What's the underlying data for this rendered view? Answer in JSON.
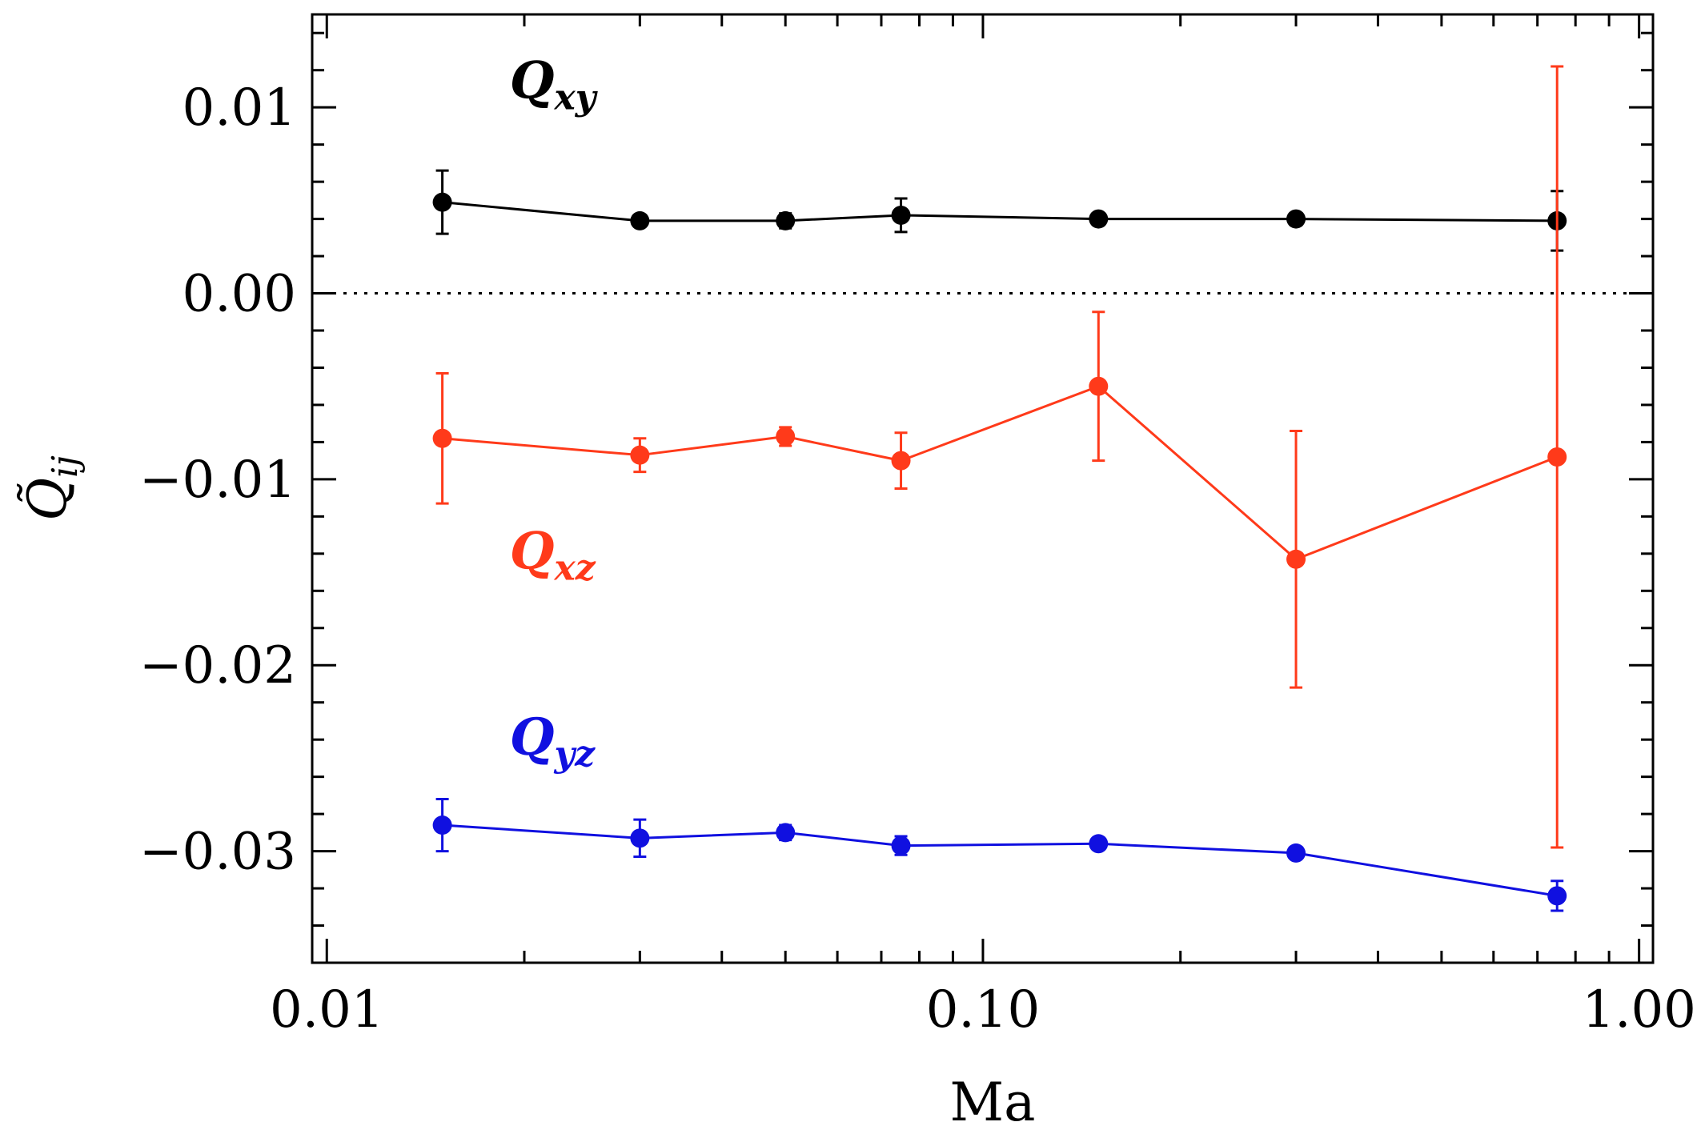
{
  "chart_data": {
    "type": "scatter",
    "xscale": "log",
    "xlim": [
      0.0095,
      1.05
    ],
    "ylim": [
      -0.036,
      0.015
    ],
    "xlabel": "Ma",
    "ylabel": "Q̃",
    "ylabel_sub": "ij",
    "xticks": [
      {
        "value": 0.01,
        "label": "0.01"
      },
      {
        "value": 0.1,
        "label": "0.10"
      },
      {
        "value": 1.0,
        "label": "1.00"
      }
    ],
    "yticks": [
      {
        "value": 0.01,
        "label": "0.01"
      },
      {
        "value": 0.0,
        "label": "0.00"
      },
      {
        "value": -0.01,
        "label": "−0.01"
      },
      {
        "value": -0.02,
        "label": "−0.02"
      },
      {
        "value": -0.03,
        "label": "−0.03"
      }
    ],
    "reference_line": {
      "y": 0.0,
      "style": "dotted"
    },
    "x": [
      0.015,
      0.03,
      0.05,
      0.075,
      0.15,
      0.3,
      0.75
    ],
    "series": [
      {
        "name": "Qxy",
        "label_main": "Q",
        "label_sub": "xy",
        "color": "#000000",
        "label_pos": {
          "x": 0.019,
          "y": 0.0105
        },
        "values": [
          0.0049,
          0.0039,
          0.0039,
          0.0042,
          0.004,
          0.004,
          0.0039
        ],
        "errors": [
          0.0017,
          0.0003,
          0.0004,
          0.0009,
          0.0003,
          0.0003,
          0.0016
        ]
      },
      {
        "name": "Qxz",
        "label_main": "Q",
        "label_sub": "xz",
        "color": "#ff3a1a",
        "label_pos": {
          "x": 0.019,
          "y": -0.0148
        },
        "values": [
          -0.0078,
          -0.0087,
          -0.0077,
          -0.009,
          -0.005,
          -0.0143,
          -0.0088
        ],
        "errors": [
          0.0035,
          0.0009,
          0.0005,
          0.0015,
          0.004,
          0.0069,
          0.021
        ]
      },
      {
        "name": "Qyz",
        "label_main": "Q",
        "label_sub": "yz",
        "color": "#1010e0",
        "label_pos": {
          "x": 0.019,
          "y": -0.0248
        },
        "values": [
          -0.0286,
          -0.0293,
          -0.029,
          -0.0297,
          -0.0296,
          -0.0301,
          -0.0324
        ],
        "errors": [
          0.0014,
          0.001,
          0.0004,
          0.0005,
          0.0002,
          0.0002,
          0.0008
        ]
      }
    ]
  }
}
